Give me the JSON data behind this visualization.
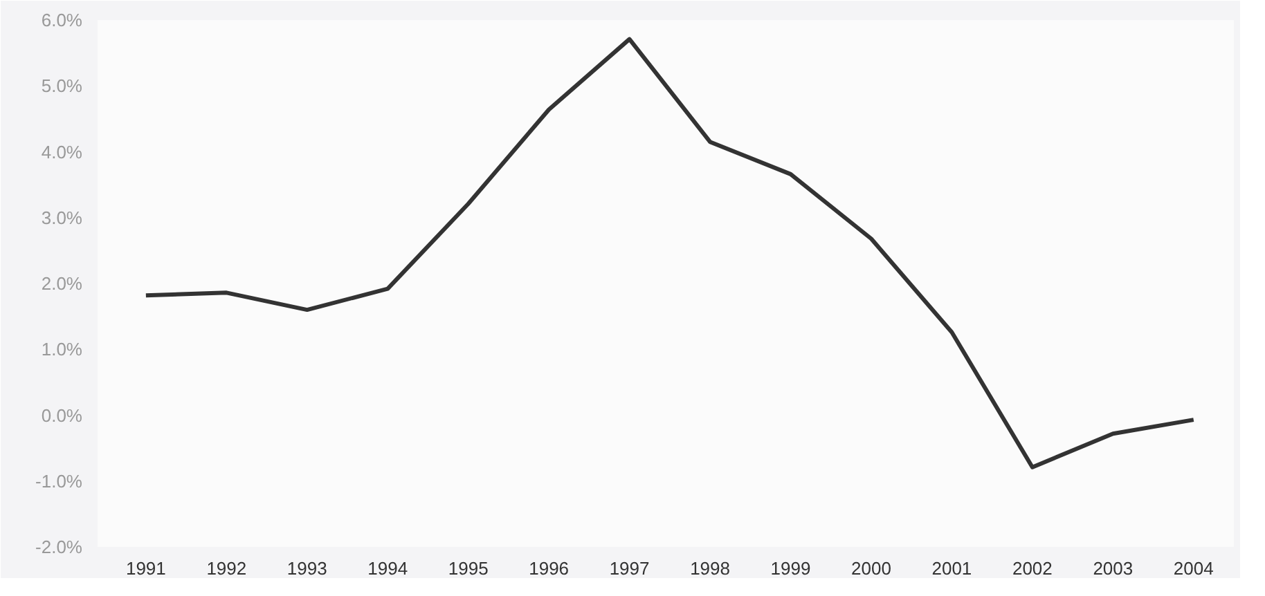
{
  "chart_data": {
    "type": "line",
    "categories": [
      "1991",
      "1992",
      "1993",
      "1994",
      "1995",
      "1996",
      "1997",
      "1998",
      "1999",
      "2000",
      "2001",
      "2002",
      "2003",
      "2004"
    ],
    "series": [
      {
        "color": "#333333",
        "values": [
          1.82,
          1.86,
          1.6,
          1.92,
          3.21,
          4.64,
          5.71,
          4.15,
          3.66,
          2.68,
          1.26,
          -0.79,
          -0.28,
          -0.07
        ]
      }
    ],
    "ylim": [
      -2,
      6
    ],
    "yticks": [
      {
        "value": -2,
        "label": "-2.0%"
      },
      {
        "value": -1,
        "label": "-1.0%"
      },
      {
        "value": 0,
        "label": "0.0%"
      },
      {
        "value": 1,
        "label": "1.0%"
      },
      {
        "value": 2,
        "label": "2.0%"
      },
      {
        "value": 3,
        "label": "3.0%"
      },
      {
        "value": 4,
        "label": "4.0%"
      },
      {
        "value": 5,
        "label": "5.0%"
      },
      {
        "value": 6,
        "label": "6.0%"
      }
    ],
    "grid": false,
    "marker": "none",
    "line_style": "solid"
  }
}
